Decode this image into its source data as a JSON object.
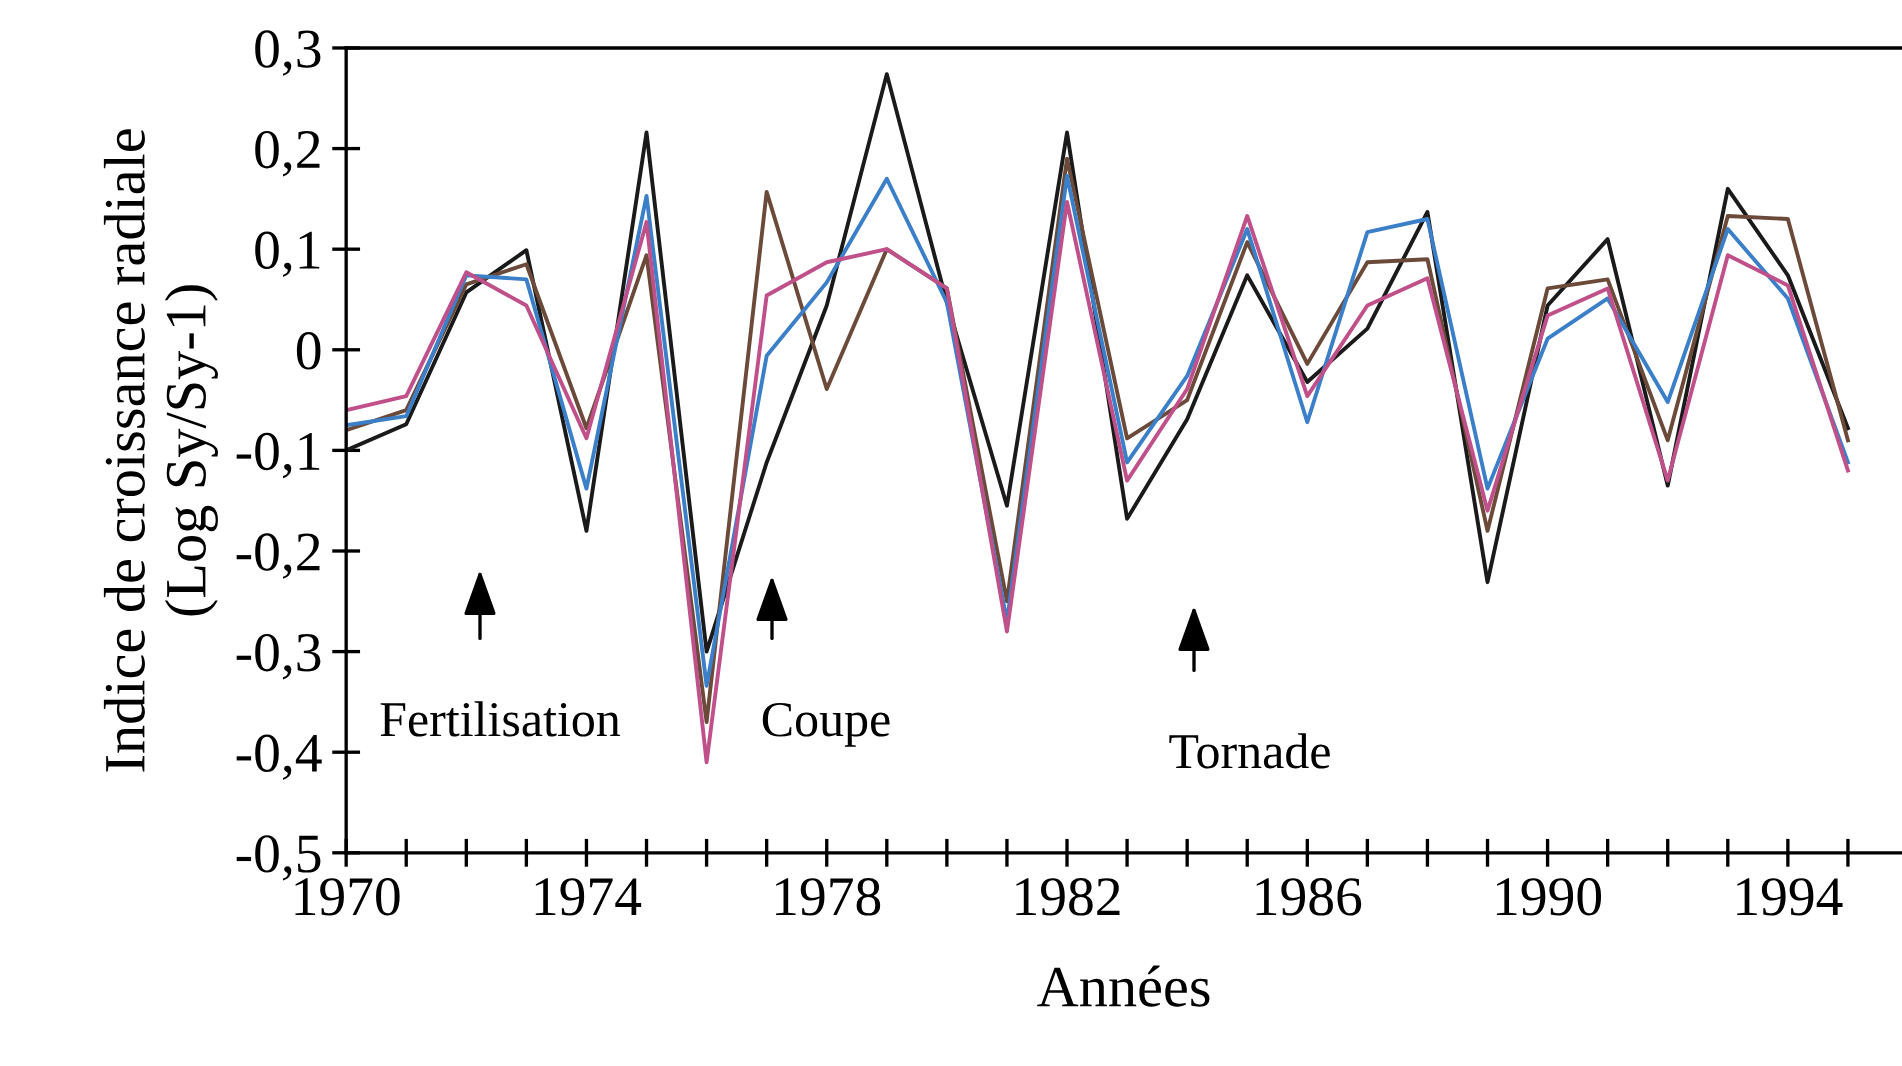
{
  "chart_data": {
    "type": "line",
    "xlabel": "Années",
    "ylabel": "Indice de croissance radiale\n(Log Sy/Sy-1)",
    "x": [
      1970,
      1971,
      1972,
      1973,
      1974,
      1975,
      1976,
      1977,
      1978,
      1979,
      1980,
      1981,
      1982,
      1983,
      1984,
      1985,
      1986,
      1987,
      1988,
      1989,
      1990,
      1991,
      1992,
      1993,
      1994,
      1995
    ],
    "series": [
      {
        "color": "#1a1a1a",
        "values": [
          -0.1,
          -0.074,
          0.057,
          0.099,
          -0.18,
          0.216,
          -0.3,
          -0.112,
          0.044,
          0.274,
          0.047,
          -0.155,
          0.216,
          -0.168,
          -0.069,
          0.074,
          -0.032,
          0.021,
          0.137,
          -0.231,
          0.044,
          0.11,
          -0.135,
          0.16,
          0.074,
          -0.078
        ]
      },
      {
        "color": "#6b4a3a",
        "values": [
          -0.08,
          -0.06,
          0.065,
          0.085,
          -0.078,
          0.094,
          -0.37,
          0.157,
          -0.039,
          0.1,
          0.061,
          -0.25,
          0.19,
          -0.088,
          -0.05,
          0.107,
          -0.014,
          0.087,
          0.09,
          -0.18,
          0.061,
          0.07,
          -0.09,
          0.133,
          0.13,
          -0.09
        ]
      },
      {
        "color": "#3a7fc8",
        "values": [
          -0.075,
          -0.066,
          0.074,
          0.07,
          -0.138,
          0.153,
          -0.334,
          -0.006,
          0.067,
          0.17,
          0.047,
          -0.27,
          0.173,
          -0.112,
          -0.026,
          0.12,
          -0.072,
          0.117,
          0.13,
          -0.138,
          0.011,
          0.051,
          -0.052,
          0.12,
          0.051,
          -0.112
        ]
      },
      {
        "color": "#c0508a",
        "values": [
          -0.06,
          -0.046,
          0.077,
          0.044,
          -0.088,
          0.127,
          -0.41,
          0.054,
          0.087,
          0.1,
          0.061,
          -0.28,
          0.147,
          -0.13,
          -0.039,
          0.133,
          -0.046,
          0.044,
          0.071,
          -0.16,
          0.034,
          0.061,
          -0.13,
          0.094,
          0.064,
          -0.12
        ]
      }
    ],
    "xlim": [
      1970,
      1995.9
    ],
    "xticks": [
      {
        "value": 1970,
        "label": "1970"
      },
      {
        "value": 1971,
        "label": null
      },
      {
        "value": 1972,
        "label": null
      },
      {
        "value": 1973,
        "label": null
      },
      {
        "value": 1974,
        "label": "1974"
      },
      {
        "value": 1975,
        "label": null
      },
      {
        "value": 1976,
        "label": null
      },
      {
        "value": 1977,
        "label": null
      },
      {
        "value": 1978,
        "label": "1978"
      },
      {
        "value": 1979,
        "label": null
      },
      {
        "value": 1980,
        "label": null
      },
      {
        "value": 1981,
        "label": null
      },
      {
        "value": 1982,
        "label": "1982"
      },
      {
        "value": 1983,
        "label": null
      },
      {
        "value": 1984,
        "label": null
      },
      {
        "value": 1985,
        "label": null
      },
      {
        "value": 1986,
        "label": "1986"
      },
      {
        "value": 1987,
        "label": null
      },
      {
        "value": 1988,
        "label": null
      },
      {
        "value": 1989,
        "label": null
      },
      {
        "value": 1990,
        "label": "1990"
      },
      {
        "value": 1991,
        "label": null
      },
      {
        "value": 1992,
        "label": null
      },
      {
        "value": 1993,
        "label": null
      },
      {
        "value": 1994,
        "label": "1994"
      },
      {
        "value": 1995,
        "label": null
      }
    ],
    "ylim": [
      -0.5,
      0.3
    ],
    "yticks": [
      {
        "value": -0.5,
        "label": "-0,5"
      },
      {
        "value": -0.4,
        "label": "-0,4"
      },
      {
        "value": -0.3,
        "label": "-0,3"
      },
      {
        "value": -0.2,
        "label": "-0,2"
      },
      {
        "value": -0.1,
        "label": "-0,1"
      },
      0,
      {
        "value": 0.1,
        "label": "0,1"
      },
      {
        "value": 0.2,
        "label": "0,2"
      },
      {
        "value": 0.3,
        "label": "0,3"
      }
    ],
    "annotations": [
      "Fertilisation",
      "Coupe",
      "Tornade"
    ],
    "grid": false,
    "legend": false,
    "marker": "none",
    "line_style": "solid"
  }
}
